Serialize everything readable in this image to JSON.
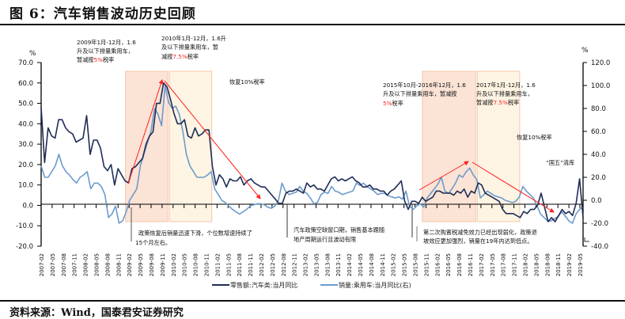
{
  "header": {
    "title": "图 6：汽车销售波动历史回顾"
  },
  "footer": {
    "source": "资料来源：Wind，国泰君安证券研究"
  },
  "chart_data": {
    "type": "line",
    "title": "图 6：汽车销售波动历史回顾",
    "left_axis": {
      "unit": "%",
      "ylim": [
        -20,
        70
      ],
      "ticks": [
        "70.0",
        "60.0",
        "50.0",
        "40.0",
        "30.0",
        "20.0",
        "10.0",
        "0.0",
        "-10.0",
        "-20.0"
      ]
    },
    "right_axis": {
      "unit": "%",
      "ylim": [
        -40,
        120
      ],
      "ticks": [
        "120.0",
        "100.0",
        "80.0",
        "60.0",
        "40.0",
        "20.0",
        "0.0",
        "-20.0",
        "-40.0"
      ]
    },
    "x_start": "2007-02",
    "x_tick_labels": [
      "2007-02",
      "2007-05",
      "2007-08",
      "2007-11",
      "2008-02",
      "2008-05",
      "2008-08",
      "2008-11",
      "2009-02",
      "2009-05",
      "2009-08",
      "2009-11",
      "2010-02",
      "2010-05",
      "2010-08",
      "2010-11",
      "2011-02",
      "2011-05",
      "2011-08",
      "2011-11",
      "2012-02",
      "2012-05",
      "2012-08",
      "2012-11",
      "2013-02",
      "2013-05",
      "2013-08",
      "2013-11",
      "2014-02",
      "2014-05",
      "2014-08",
      "2014-11",
      "2015-02",
      "2015-05",
      "2015-08",
      "2015-11",
      "2016-02",
      "2016-05",
      "2016-08",
      "2016-11",
      "2017-02",
      "2017-05",
      "2017-08",
      "2017-11",
      "2018-02",
      "2018-05",
      "2018-08",
      "2018-11",
      "2019-02",
      "2019-05"
    ],
    "series": [
      {
        "name": "零售额:汽车类:当月同比",
        "axis": "left",
        "color": "#1f2d56",
        "values": [
          48,
          21,
          38,
          34,
          33,
          42,
          42,
          38,
          36,
          35,
          31,
          32,
          33,
          44,
          25,
          32,
          32,
          28,
          19,
          17,
          20,
          10,
          18,
          15,
          12,
          11,
          18,
          19,
          21,
          23,
          30,
          34,
          36,
          50,
          50,
          60,
          58,
          52,
          45,
          40,
          40,
          42,
          34,
          33,
          38,
          34,
          35,
          37,
          37,
          19,
          10,
          15,
          13,
          9,
          13,
          12,
          12,
          14,
          10,
          12,
          13,
          11,
          10,
          9,
          9,
          7,
          5,
          3,
          1,
          1,
          6,
          7,
          7,
          8,
          7,
          6,
          11,
          9,
          10,
          8,
          8,
          7,
          10,
          13,
          14,
          12,
          13,
          12,
          13,
          14,
          12,
          11,
          9,
          9,
          10,
          8,
          8,
          7,
          7,
          5,
          7,
          8,
          10,
          12,
          2,
          -2,
          2,
          2,
          1,
          4,
          2,
          3,
          4,
          7,
          7,
          6,
          6,
          6,
          5,
          7,
          6,
          8,
          4,
          7,
          6,
          11,
          10,
          6,
          5,
          4,
          3,
          2,
          -2,
          -4,
          -4,
          -4,
          -5,
          -6,
          -3,
          -4,
          -2,
          -2,
          0,
          6,
          -1,
          -8,
          -6,
          -8,
          -5,
          -2,
          -4,
          -3,
          -5,
          1,
          13,
          -6
        ]
      },
      {
        "name": "销量:乘用车:当月同比(右)",
        "axis": "right",
        "color": "#6c9bcc",
        "values": [
          30,
          20,
          20,
          25,
          30,
          40,
          30,
          25,
          22,
          18,
          15,
          20,
          22,
          25,
          10,
          15,
          15,
          12,
          5,
          -15,
          -12,
          -5,
          -20,
          -18,
          -10,
          0,
          5,
          10,
          30,
          40,
          50,
          60,
          80,
          75,
          65,
          100,
          85,
          80,
          82,
          75,
          60,
          40,
          30,
          25,
          20,
          20,
          20,
          22,
          25,
          10,
          5,
          0,
          -2,
          -5,
          -8,
          -10,
          -12,
          -10,
          -8,
          -5,
          -4,
          -3,
          -3,
          -4,
          -6,
          -7,
          -5,
          0,
          15,
          8,
          5,
          6,
          7,
          12,
          8,
          6,
          2,
          -3,
          -2,
          5,
          7,
          6,
          12,
          8,
          7,
          5,
          6,
          7,
          8,
          15,
          13,
          15,
          12,
          10,
          8,
          5,
          6,
          6,
          4,
          3,
          2,
          3,
          1,
          8,
          -5,
          -8,
          -5,
          -3,
          -6,
          2,
          6,
          10,
          14,
          20,
          8,
          6,
          10,
          15,
          22,
          20,
          25,
          28,
          22,
          18,
          2,
          5,
          8,
          6,
          4,
          3,
          2,
          0,
          -1,
          -2,
          -1,
          3,
          12,
          8,
          5,
          2,
          -5,
          -12,
          -15,
          -18,
          -18,
          -16,
          -14,
          -10,
          -14,
          -18,
          -20,
          -12,
          -8,
          -6
        ]
      }
    ],
    "legend": {
      "placement": "bottom",
      "entries": [
        "零售额:汽车类:当月同比",
        "销量:乘用车:当月同比(右)"
      ]
    },
    "shaded_periods": [
      {
        "from": "2009-01",
        "to": "2009-12",
        "color": "#fbe3d6"
      },
      {
        "from": "2010-01",
        "to": "2010-12",
        "color": "#fef4e3"
      },
      {
        "from": "2015-10",
        "to": "2016-12",
        "color": "#fbe3d6"
      },
      {
        "from": "2017-01",
        "to": "2017-12",
        "color": "#fef4e3"
      }
    ],
    "annotations": {
      "a2009": {
        "l1": "2009年1月-12月，1.6",
        "l2": "升及以下排量乘用车，",
        "l3a": "暂减按",
        "l3b": "5%",
        "l3c": "税率"
      },
      "a2010": {
        "l1": "2010年1月-12月，1.6升",
        "l2": "及以下排量乘用车，暂",
        "l3a": "减按",
        "l3b": "7.5%",
        "l3c": "税率"
      },
      "restore1": "恢复10%税率",
      "a2015": {
        "l1": "2015年10月-2016年12月，1.6",
        "l2": "升及以下排量乘用车，暂减按",
        "l3b": "5%",
        "l3c": "税率"
      },
      "a2017": {
        "l1": "2017年1月-12月，1.6",
        "l2": "升及以下排量乘用车，",
        "l3a": "暂减按",
        "l3b": "7.5%",
        "l3c": "税率"
      },
      "restore2": "恢复10%税率",
      "guowu": "“国五”清库",
      "note1": {
        "l1": "政策恢复后销量迅速下滑，个位数增速持续了",
        "l2": "15个月左右。"
      },
      "note2": {
        "l1": "汽车政策空缺窗口期，销售基本跟随",
        "l2": "地产周期运行且波动有限"
      },
      "note3": {
        "l1": "第二次购置税减免效力已经出现弱化，政策退",
        "l2": "坡效应更加强烈，销量在19年内达到低点。"
      }
    }
  }
}
